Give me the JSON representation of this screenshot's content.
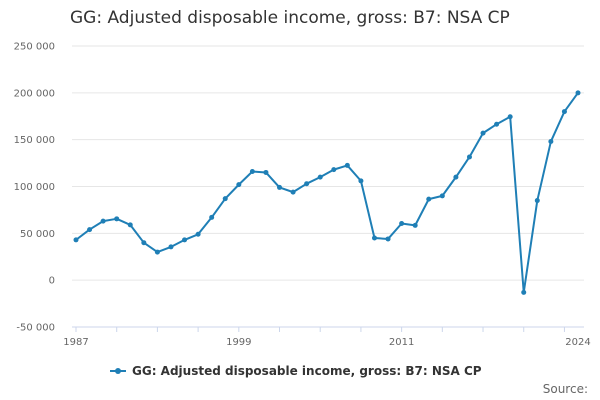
{
  "chart_data": {
    "type": "line",
    "title": "GG: Adjusted disposable income, gross: B7: NSA CP",
    "xlabel": "",
    "ylabel": "",
    "ylim": [
      -50000,
      250000
    ],
    "yticks": [
      250000,
      200000,
      150000,
      100000,
      50000,
      0,
      -50000
    ],
    "ytick_labels": [
      "250 000",
      "200 000",
      "150 000",
      "100 000",
      "50 000",
      "0",
      "-50 000"
    ],
    "xlim": [
      1987,
      2024
    ],
    "xticks": [
      1987,
      1999,
      2011,
      2024
    ],
    "grid": "horizontal",
    "legend_position": "bottom",
    "series": [
      {
        "name": "GG: Adjusted disposable income, gross: B7: NSA CP",
        "color": "#1f7fb6",
        "x": [
          1987,
          1988,
          1989,
          1990,
          1991,
          1992,
          1993,
          1994,
          1995,
          1996,
          1997,
          1998,
          1999,
          2000,
          2001,
          2002,
          2003,
          2004,
          2005,
          2006,
          2007,
          2008,
          2009,
          2010,
          2011,
          2012,
          2013,
          2014,
          2015,
          2016,
          2017,
          2018,
          2019,
          2020,
          2021,
          2022,
          2023,
          2024
        ],
        "values": [
          43000,
          54000,
          63000,
          65500,
          59000,
          40000,
          30000,
          35500,
          43000,
          49000,
          67000,
          87000,
          102000,
          116000,
          115000,
          99000,
          94000,
          103000,
          110000,
          118000,
          122500,
          106000,
          45000,
          44000,
          60500,
          58500,
          86500,
          90000,
          110000,
          131500,
          157000,
          166500,
          174500,
          -13000,
          85000,
          148000,
          180000,
          200000
        ]
      }
    ]
  },
  "source_label": "Source:"
}
